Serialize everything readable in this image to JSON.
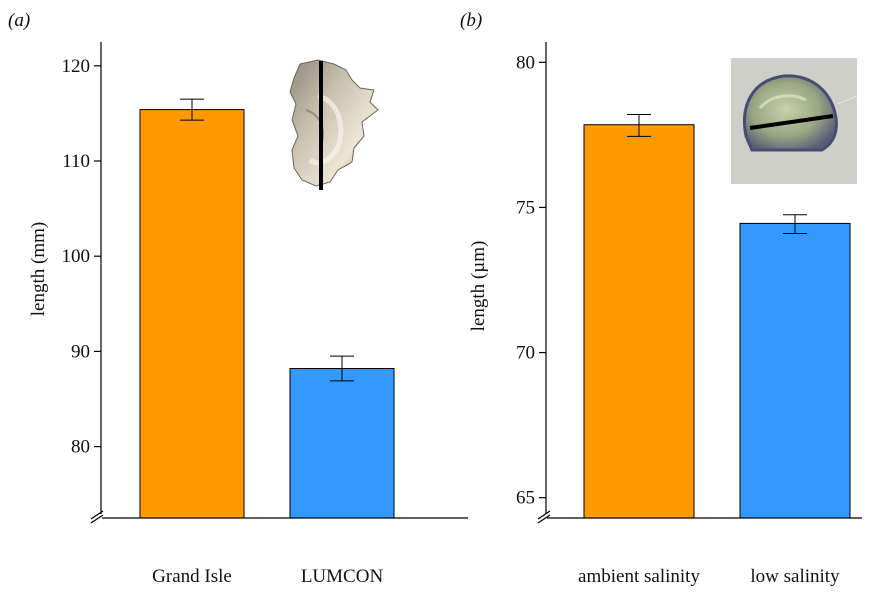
{
  "chart_data": [
    {
      "type": "bar",
      "panel_label": "(a)",
      "ylabel": "length (mm)",
      "categories": [
        "Grand Isle",
        "LUMCON"
      ],
      "values": [
        115.4,
        88.2
      ],
      "error_low": [
        114.3,
        86.9
      ],
      "error_high": [
        116.5,
        89.5
      ],
      "colors": [
        "#ff9900",
        "#3399ff"
      ],
      "yticks": [
        80,
        90,
        100,
        110,
        120
      ],
      "yticks_text": [
        "80",
        "90",
        "100",
        "110",
        "120"
      ],
      "ylim": [
        72.5,
        122.5
      ],
      "axis_break": true,
      "inset_image": "oyster-shell-photo"
    },
    {
      "type": "bar",
      "panel_label": "(b)",
      "ylabel": "length (µm)",
      "categories": [
        "ambient salinity",
        "low salinity"
      ],
      "values": [
        77.85,
        74.45
      ],
      "error_low": [
        77.45,
        74.1
      ],
      "error_high": [
        78.2,
        74.75
      ],
      "colors": [
        "#ff9900",
        "#3399ff"
      ],
      "yticks": [
        65,
        70,
        75,
        80
      ],
      "yticks_text": [
        "65",
        "70",
        "75",
        "80"
      ],
      "ylim": [
        64.3,
        80.7
      ],
      "axis_break": true,
      "inset_image": "larva-micrograph"
    }
  ]
}
